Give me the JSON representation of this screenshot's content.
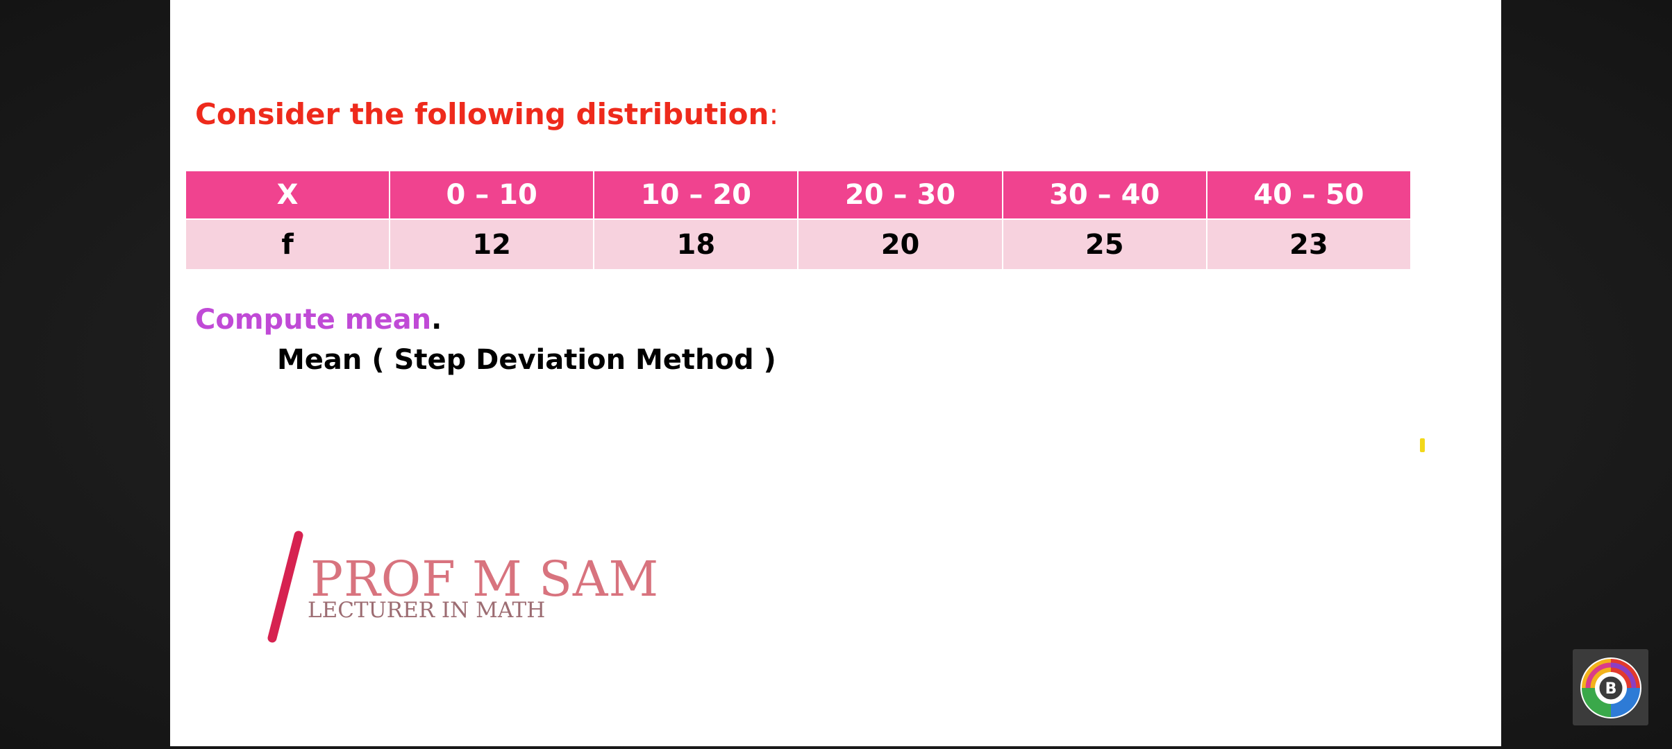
{
  "slide": {
    "heading": "Consider the following distribution",
    "heading_colon": ":",
    "table": {
      "header": [
        "X",
        "0 – 10",
        "10 – 20",
        "20 – 30",
        "30 – 40",
        "40 – 50"
      ],
      "row": [
        "f",
        "12",
        "18",
        "20",
        "25",
        "23"
      ]
    },
    "task": "Compute mean",
    "task_dot": ".",
    "method": "Mean ( Step Deviation Method )",
    "logo": {
      "name": "PROF M SAM",
      "subtitle": "LECTURER IN MATH"
    }
  },
  "badge": {
    "letter": "B",
    "icon": "app-logo-icon"
  },
  "colors": {
    "heading": "#ee2a1c",
    "table_header_bg": "#f0438f",
    "table_row_bg": "#f7d2de",
    "task": "#c04ad6",
    "logo_slash": "#d62250",
    "logo_name": "#d8737e"
  }
}
